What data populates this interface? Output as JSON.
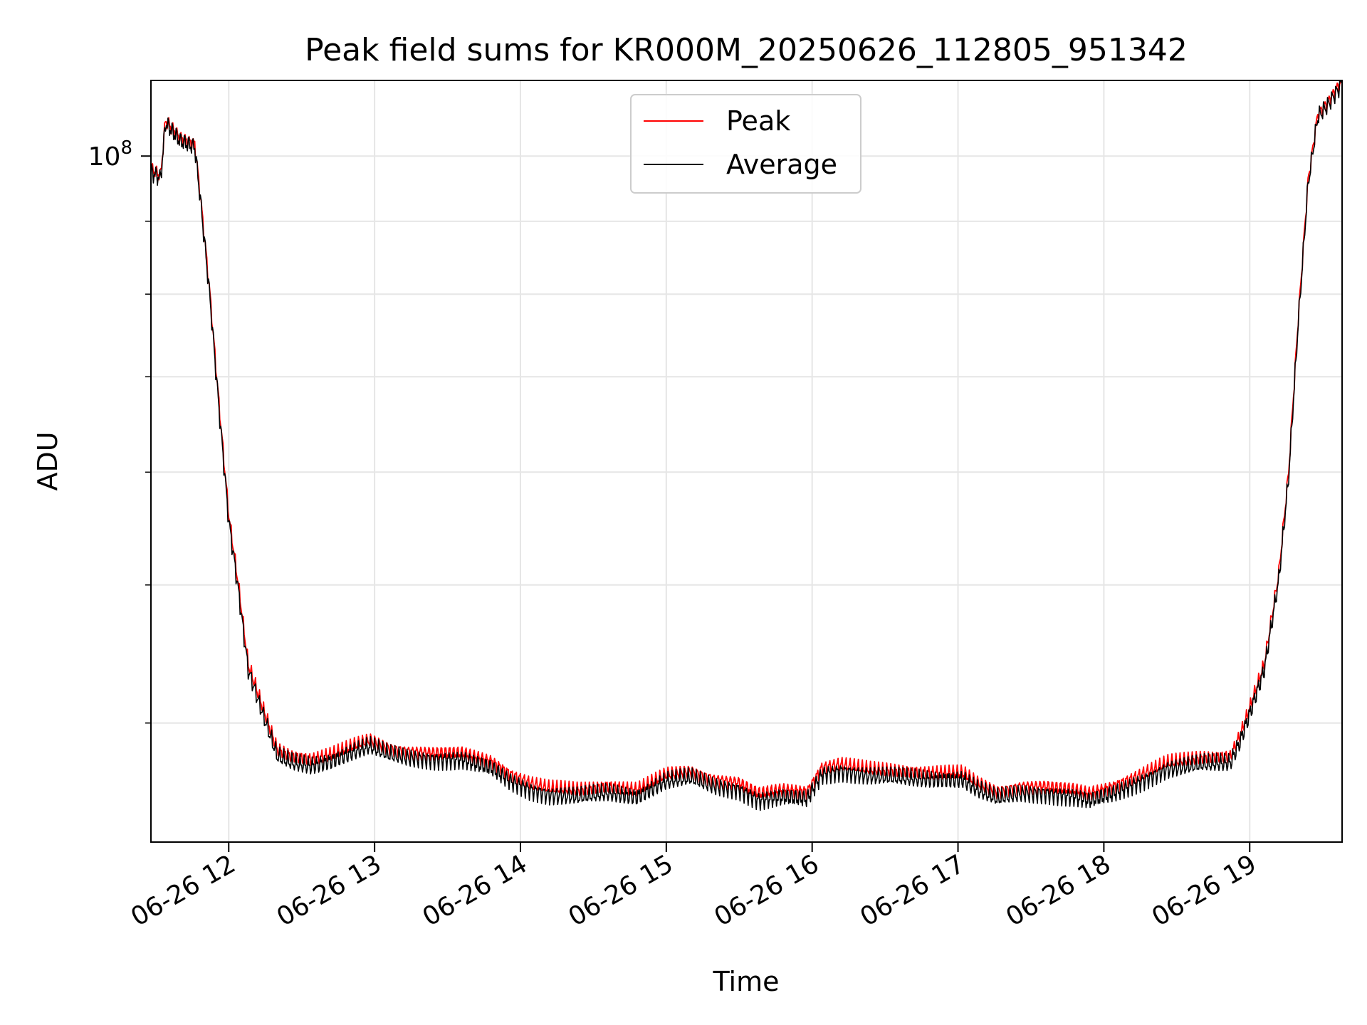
{
  "chart_data": {
    "type": "line",
    "title": "Peak field sums for KR000M_20250626_112805_951342",
    "xlabel": "Time",
    "ylabel": "ADU",
    "yscale": "log",
    "ylim": [
      33000000,
      113000000
    ],
    "xlim": [
      "2025-06-26 11:28",
      "2025-06-26 19:38"
    ],
    "grid": true,
    "legend": "top-center",
    "x_ticks": [
      "06-26 12",
      "06-26 13",
      "06-26 14",
      "06-26 15",
      "06-26 16",
      "06-26 17",
      "06-26 18",
      "06-26 19"
    ],
    "y_ticks": [
      {
        "label": "10",
        "exp": "8",
        "value": 100000000
      }
    ],
    "series": [
      {
        "name": "Peak",
        "color": "#ff0000",
        "x": [
          "2025-06-26 11:28",
          "2025-06-26 11:32",
          "2025-06-26 11:34",
          "2025-06-26 11:36",
          "2025-06-26 11:40",
          "2025-06-26 11:46",
          "2025-06-26 11:48",
          "2025-06-26 11:52",
          "2025-06-26 11:56",
          "2025-06-26 12:00",
          "2025-06-26 12:04",
          "2025-06-26 12:08",
          "2025-06-26 12:14",
          "2025-06-26 12:20",
          "2025-06-26 12:26",
          "2025-06-26 12:34",
          "2025-06-26 12:42",
          "2025-06-26 12:52",
          "2025-06-26 12:58",
          "2025-06-26 13:06",
          "2025-06-26 13:14",
          "2025-06-26 13:24",
          "2025-06-26 13:36",
          "2025-06-26 13:48",
          "2025-06-26 13:56",
          "2025-06-26 14:04",
          "2025-06-26 14:12",
          "2025-06-26 14:24",
          "2025-06-26 14:36",
          "2025-06-26 14:48",
          "2025-06-26 15:00",
          "2025-06-26 15:10",
          "2025-06-26 15:20",
          "2025-06-26 15:30",
          "2025-06-26 15:38",
          "2025-06-26 15:48",
          "2025-06-26 15:58",
          "2025-06-26 16:04",
          "2025-06-26 16:12",
          "2025-06-26 16:24",
          "2025-06-26 16:36",
          "2025-06-26 16:48",
          "2025-06-26 17:02",
          "2025-06-26 17:08",
          "2025-06-26 17:16",
          "2025-06-26 17:26",
          "2025-06-26 17:36",
          "2025-06-26 17:48",
          "2025-06-26 17:54",
          "2025-06-26 18:04",
          "2025-06-26 18:14",
          "2025-06-26 18:26",
          "2025-06-26 18:40",
          "2025-06-26 18:52",
          "2025-06-26 18:56",
          "2025-06-26 19:00",
          "2025-06-26 19:06",
          "2025-06-26 19:12",
          "2025-06-26 19:16",
          "2025-06-26 19:20",
          "2025-06-26 19:24",
          "2025-06-26 19:28",
          "2025-06-26 19:32",
          "2025-06-26 19:38"
        ],
        "values": [
          98000000,
          97000000,
          106000000,
          105000000,
          103000000,
          102000000,
          95000000,
          81000000,
          67000000,
          56000000,
          50000000,
          44000000,
          41000000,
          38300000,
          37900000,
          37700000,
          38000000,
          38600000,
          38900000,
          38400000,
          38200000,
          38100000,
          38100000,
          37600000,
          36800000,
          36300000,
          36000000,
          35900000,
          36100000,
          35900000,
          36800000,
          37000000,
          36500000,
          36300000,
          35700000,
          35900000,
          35800000,
          37200000,
          37400000,
          37100000,
          37000000,
          36900000,
          36900000,
          36300000,
          35800000,
          36100000,
          36100000,
          35900000,
          35700000,
          36100000,
          36700000,
          37500000,
          37800000,
          37900000,
          39200000,
          41000000,
          44000000,
          51000000,
          60000000,
          77000000,
          96000000,
          107000000,
          109000000,
          113000000
        ]
      },
      {
        "name": "Average",
        "color": "#000000",
        "x": [
          "2025-06-26 11:28",
          "2025-06-26 11:32",
          "2025-06-26 11:34",
          "2025-06-26 11:36",
          "2025-06-26 11:40",
          "2025-06-26 11:46",
          "2025-06-26 11:48",
          "2025-06-26 11:52",
          "2025-06-26 11:56",
          "2025-06-26 12:00",
          "2025-06-26 12:04",
          "2025-06-26 12:08",
          "2025-06-26 12:14",
          "2025-06-26 12:20",
          "2025-06-26 12:26",
          "2025-06-26 12:34",
          "2025-06-26 12:42",
          "2025-06-26 12:52",
          "2025-06-26 12:58",
          "2025-06-26 13:06",
          "2025-06-26 13:14",
          "2025-06-26 13:24",
          "2025-06-26 13:36",
          "2025-06-26 13:48",
          "2025-06-26 13:56",
          "2025-06-26 14:04",
          "2025-06-26 14:12",
          "2025-06-26 14:24",
          "2025-06-26 14:36",
          "2025-06-26 14:48",
          "2025-06-26 15:00",
          "2025-06-26 15:10",
          "2025-06-26 15:20",
          "2025-06-26 15:30",
          "2025-06-26 15:38",
          "2025-06-26 15:48",
          "2025-06-26 15:58",
          "2025-06-26 16:04",
          "2025-06-26 16:12",
          "2025-06-26 16:24",
          "2025-06-26 16:36",
          "2025-06-26 16:48",
          "2025-06-26 17:02",
          "2025-06-26 17:08",
          "2025-06-26 17:16",
          "2025-06-26 17:26",
          "2025-06-26 17:36",
          "2025-06-26 17:48",
          "2025-06-26 17:54",
          "2025-06-26 18:04",
          "2025-06-26 18:14",
          "2025-06-26 18:26",
          "2025-06-26 18:40",
          "2025-06-26 18:52",
          "2025-06-26 18:56",
          "2025-06-26 19:00",
          "2025-06-26 19:06",
          "2025-06-26 19:12",
          "2025-06-26 19:16",
          "2025-06-26 19:20",
          "2025-06-26 19:24",
          "2025-06-26 19:28",
          "2025-06-26 19:32",
          "2025-06-26 19:38"
        ],
        "values": [
          97500000,
          96500000,
          105500000,
          104500000,
          102500000,
          101500000,
          94500000,
          80500000,
          66500000,
          55500000,
          49500000,
          43600000,
          40600000,
          37900000,
          37500000,
          37300000,
          37600000,
          38200000,
          38500000,
          38000000,
          37800000,
          37700000,
          37700000,
          37200000,
          36400000,
          35900000,
          35600000,
          35500000,
          35700000,
          35500000,
          36400000,
          36600000,
          36100000,
          35900000,
          35300000,
          35500000,
          35400000,
          36800000,
          37000000,
          36700000,
          36600000,
          36500000,
          36500000,
          35900000,
          35400000,
          35700000,
          35700000,
          35500000,
          35300000,
          35700000,
          36300000,
          37100000,
          37400000,
          37500000,
          38800000,
          40600000,
          43600000,
          50500000,
          59500000,
          76500000,
          95500000,
          106500000,
          108500000,
          112500000
        ]
      }
    ]
  }
}
